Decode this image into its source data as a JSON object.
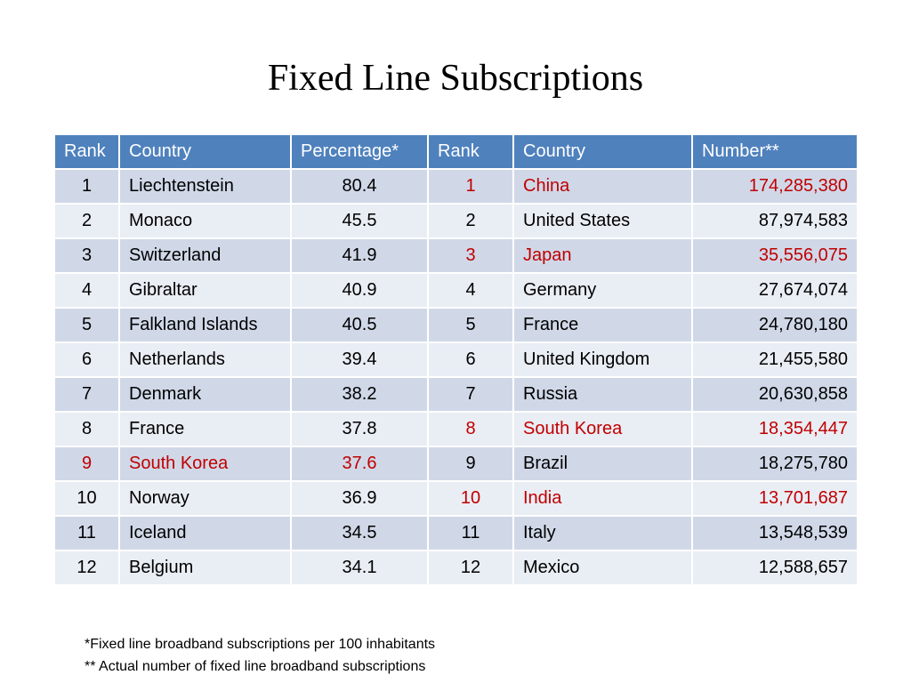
{
  "title": "Fixed Line Subscriptions",
  "colors": {
    "header_bg": "#4f81bd",
    "row_odd_bg": "#d0d8e8",
    "row_even_bg": "#e9edf4",
    "highlight": "#c00000"
  },
  "table": {
    "headers": [
      "Rank",
      "Country",
      "Percentage*",
      "Rank",
      "Country",
      "Number**"
    ],
    "rows": [
      {
        "rank1": "1",
        "country1": "Liechtenstein",
        "percentage": "80.4",
        "rank2": "1",
        "country2": "China",
        "number": "174,285,380",
        "hl_left": false,
        "hl_right": true
      },
      {
        "rank1": "2",
        "country1": "Monaco",
        "percentage": "45.5",
        "rank2": "2",
        "country2": "United States",
        "number": "87,974,583",
        "hl_left": false,
        "hl_right": false
      },
      {
        "rank1": "3",
        "country1": "Switzerland",
        "percentage": "41.9",
        "rank2": "3",
        "country2": "Japan",
        "number": "35,556,075",
        "hl_left": false,
        "hl_right": true
      },
      {
        "rank1": "4",
        "country1": "Gibraltar",
        "percentage": "40.9",
        "rank2": "4",
        "country2": "Germany",
        "number": "27,674,074",
        "hl_left": false,
        "hl_right": false
      },
      {
        "rank1": "5",
        "country1": "Falkland Islands",
        "percentage": "40.5",
        "rank2": "5",
        "country2": "France",
        "number": "24,780,180",
        "hl_left": false,
        "hl_right": false
      },
      {
        "rank1": "6",
        "country1": "Netherlands",
        "percentage": "39.4",
        "rank2": "6",
        "country2": "United Kingdom",
        "number": "21,455,580",
        "hl_left": false,
        "hl_right": false
      },
      {
        "rank1": "7",
        "country1": "Denmark",
        "percentage": "38.2",
        "rank2": "7",
        "country2": "Russia",
        "number": "20,630,858",
        "hl_left": false,
        "hl_right": false
      },
      {
        "rank1": "8",
        "country1": "France",
        "percentage": "37.8",
        "rank2": "8",
        "country2": "South Korea",
        "number": "18,354,447",
        "hl_left": false,
        "hl_right": true
      },
      {
        "rank1": "9",
        "country1": "South Korea",
        "percentage": "37.6",
        "rank2": "9",
        "country2": "Brazil",
        "number": "18,275,780",
        "hl_left": true,
        "hl_right": false
      },
      {
        "rank1": "10",
        "country1": "Norway",
        "percentage": "36.9",
        "rank2": "10",
        "country2": "India",
        "number": "13,701,687",
        "hl_left": false,
        "hl_right": true
      },
      {
        "rank1": "11",
        "country1": "Iceland",
        "percentage": "34.5",
        "rank2": "11",
        "country2": "Italy",
        "number": "13,548,539",
        "hl_left": false,
        "hl_right": false
      },
      {
        "rank1": "12",
        "country1": "Belgium",
        "percentage": "34.1",
        "rank2": "12",
        "country2": "Mexico",
        "number": "12,588,657",
        "hl_left": false,
        "hl_right": false
      }
    ]
  },
  "footnotes": [
    "*Fixed line broadband subscriptions per 100 inhabitants",
    "** Actual number of fixed line broadband subscriptions"
  ]
}
